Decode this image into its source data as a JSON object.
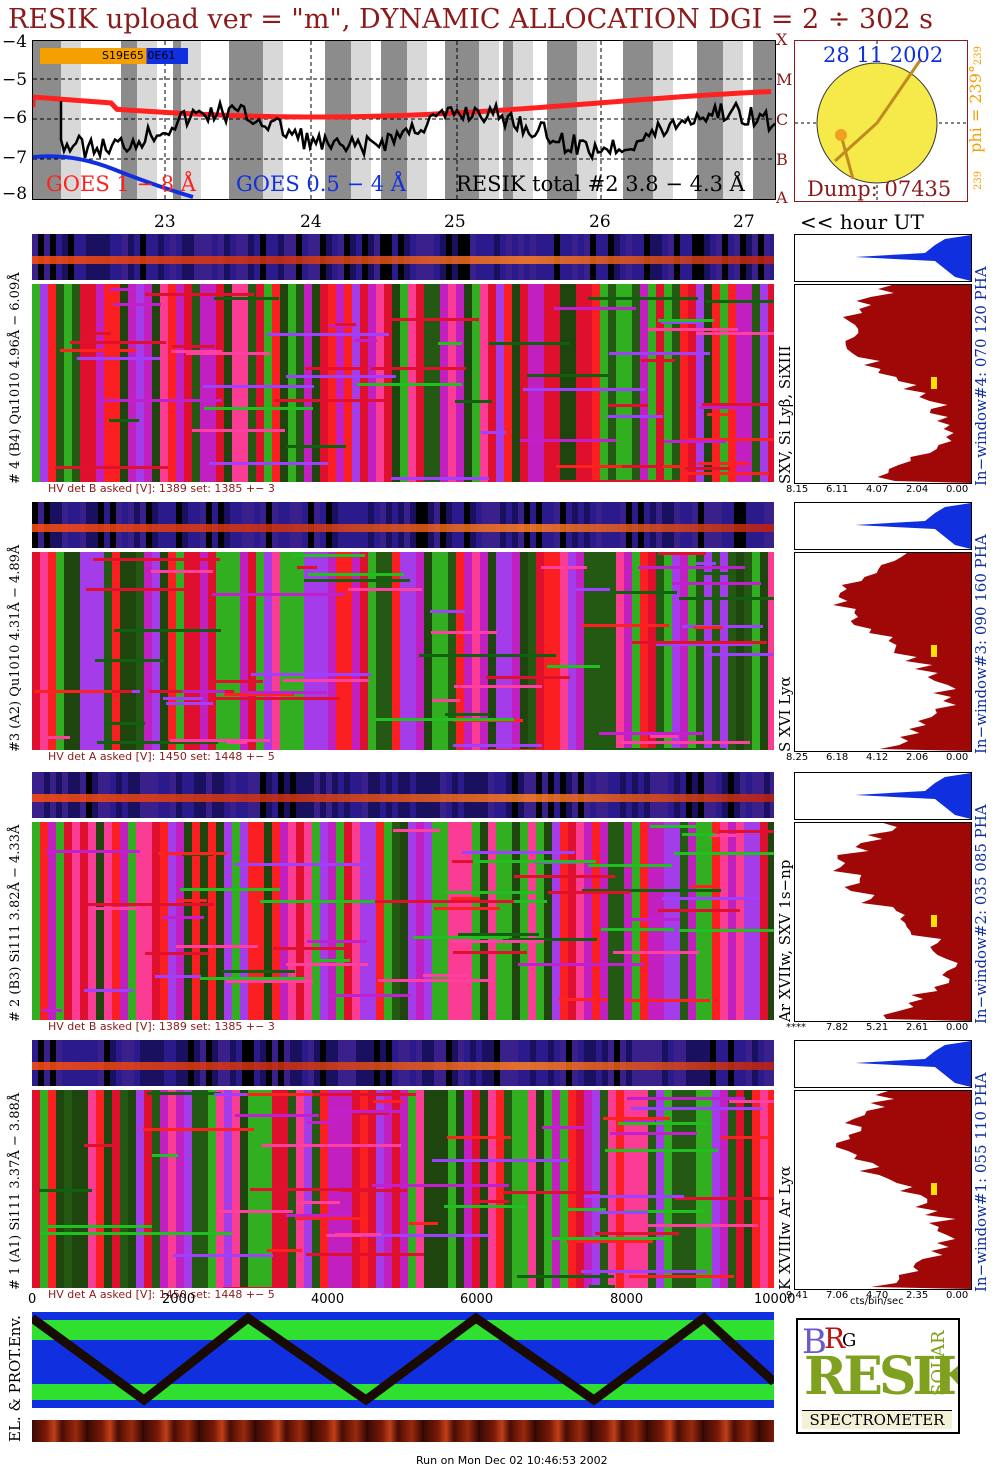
{
  "title": "RESIK upload ver = \"m\", DYNAMIC ALLOCATION  DGI =   2 ÷ 302 s",
  "goes": {
    "y_ticks": [
      "−4",
      "−5",
      "−6",
      "−7",
      "−8"
    ],
    "class_labels": [
      "X",
      "M",
      "C",
      "B",
      "A"
    ],
    "legend_goes18": "GOES 1 − 8 Å",
    "legend_goes054": "GOES 0.5 − 4 Å",
    "legend_resik": "RESIK total #2  3.8 − 4.3 Å",
    "flare_tag": "S19E65 0E61",
    "hour_ticks": [
      "23",
      "24",
      "25",
      "26",
      "27"
    ],
    "hour_label": "<< hour UT",
    "colors": {
      "goes18": "#ff2020",
      "goes054": "#1030e0",
      "resik": "#000000",
      "night": "#888888"
    }
  },
  "sun": {
    "date": "28 11 2002",
    "dump": "Dump: 07435",
    "phi_label": "phi = 239°",
    "phi_small": "239",
    "phi_corner": "239"
  },
  "channels": [
    {
      "id": "4",
      "left_label": "# 4 (B4) Qu1010 4.96Å − 6.09Å",
      "line_label": "SXV, Si Lyβ, SiXIII",
      "window_label": "In−window#4:  070 120 PHA",
      "hv": "HV det B asked [V]:  1389 set:  1385 +−   3",
      "axis_ticks": [
        "8.15",
        "6.11",
        "4.07",
        "2.04",
        "0.00"
      ]
    },
    {
      "id": "3",
      "left_label": "#3 (A2) Qu1010  4.31Å − 4.89Å",
      "line_label": "S XVI Lyα",
      "window_label": "In−window#3:  090 160 PHA",
      "hv": "HV det A asked [V]:  1450 set:  1448 +−   5",
      "axis_ticks": [
        "8.25",
        "6.18",
        "4.12",
        "2.06",
        "0.00"
      ]
    },
    {
      "id": "2",
      "left_label": "# 2 (B3) Si111  3.82Å − 4.33Å",
      "line_label": "Ar XVIIw,  SXV 1s−np",
      "window_label": "In−window#2:  035 085 PHA",
      "hv": "HV det B asked [V]:  1389 set:  1385 +−   3",
      "axis_ticks": [
        "****",
        "7.82",
        "5.21",
        "2.61",
        "0.00"
      ]
    },
    {
      "id": "1",
      "left_label": "# 1 (A1) Si111  3.37Å − 3.88Å",
      "line_label": "K XVIIIw  Ar Lyα",
      "window_label": "In−window#1:  055 110 PHA",
      "hv": "HV det A asked [V]:  1450 set:  1448 +−   5",
      "axis_ticks": [
        "9.41",
        "7.06",
        "4.70",
        "2.35",
        "0.00"
      ]
    }
  ],
  "x_ticks": [
    "0",
    "2000",
    "4000",
    "6000",
    "8000",
    "10000"
  ],
  "x_unit": "cts/bin/sec",
  "env_label": "EL. & PROT.Env.",
  "logo_text": "SPECTROMETER",
  "logo_letters": [
    "B",
    "R",
    "G",
    "SOLAR",
    "RESIK"
  ],
  "footer": "Run on Mon Dec 02 10:46:53 2002"
}
